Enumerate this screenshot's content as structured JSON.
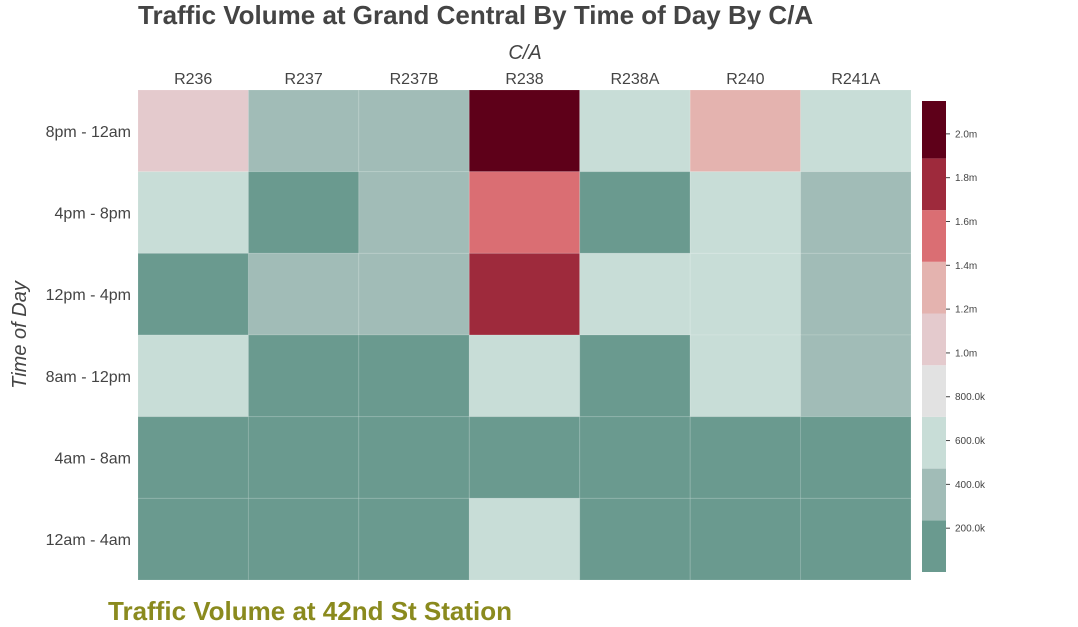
{
  "chart_data": {
    "type": "heatmap",
    "title": "Traffic Volume at Grand Central By Time of Day By C/A",
    "xlabel": "C/A",
    "ylabel": "Time of Day",
    "x": [
      "R236",
      "R237",
      "R237B",
      "R238",
      "R238A",
      "R240",
      "R241A"
    ],
    "y": [
      "8pm - 12am",
      "4pm - 8pm",
      "12pm - 4pm",
      "8am - 12pm",
      "4am - 8am",
      "12am - 4am"
    ],
    "z": [
      [
        1000000,
        300000,
        300000,
        2100000,
        500000,
        1300000,
        500000
      ],
      [
        500000,
        100000,
        300000,
        1500000,
        100000,
        700000,
        300000
      ],
      [
        100000,
        300000,
        300000,
        1700000,
        500000,
        700000,
        300000
      ],
      [
        500000,
        100000,
        100000,
        700000,
        100000,
        700000,
        300000
      ],
      [
        100000,
        100000,
        100000,
        100000,
        100000,
        100000,
        100000
      ],
      [
        100000,
        100000,
        100000,
        500000,
        100000,
        100000,
        100000
      ]
    ],
    "zlim": [
      0,
      2150000
    ],
    "colorbar": {
      "tick_values": [
        200000,
        400000,
        600000,
        800000,
        1000000,
        1200000,
        1400000,
        1600000,
        1800000,
        2000000
      ],
      "tick_labels": [
        "200.0k",
        "400.0k",
        "600.0k",
        "800.0k",
        "1.0m",
        "1.2m",
        "1.4m",
        "1.6m",
        "1.8m",
        "2.0m"
      ],
      "bins": [
        {
          "min": 0,
          "max": 236000,
          "color": "#6a9a8f"
        },
        {
          "min": 236000,
          "max": 472000,
          "color": "#a1bcb7"
        },
        {
          "min": 472000,
          "max": 708000,
          "color": "#c8ddd7"
        },
        {
          "min": 708000,
          "max": 944000,
          "color": "#e2e2e2"
        },
        {
          "min": 944000,
          "max": 1180000,
          "color": "#e4cacd"
        },
        {
          "min": 1180000,
          "max": 1416000,
          "color": "#e4b3af"
        },
        {
          "min": 1416000,
          "max": 1652000,
          "color": "#da6e73"
        },
        {
          "min": 1652000,
          "max": 1888000,
          "color": "#9e2a3c"
        },
        {
          "min": 1888000,
          "max": 2150000,
          "color": "#5e0019"
        }
      ]
    },
    "grid": false
  },
  "footer": {
    "next_title": "Traffic Volume at 42nd St Station"
  }
}
